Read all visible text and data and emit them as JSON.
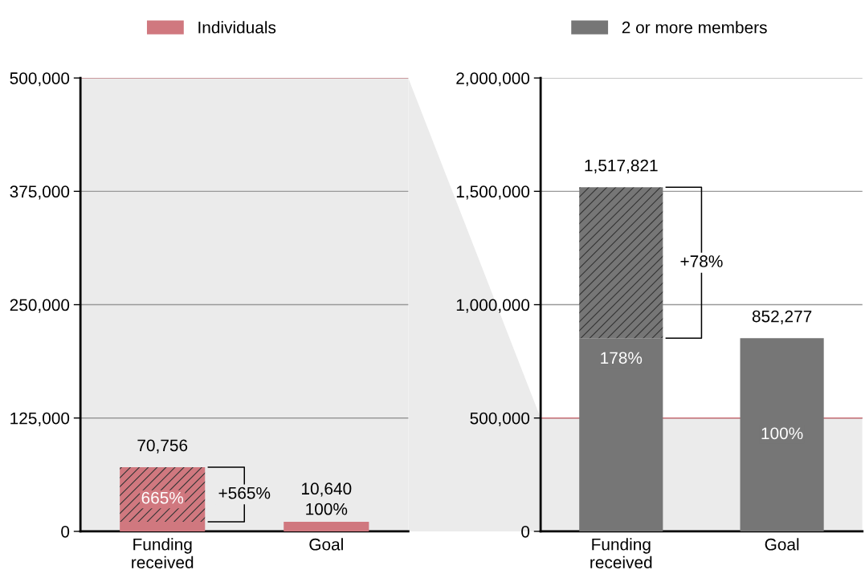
{
  "chart_data": [
    {
      "type": "bar",
      "stacked": true,
      "categories": [
        "Funding\nreceived",
        "Goal"
      ],
      "series": [
        {
          "name": "Individuals",
          "color": "#d0787f",
          "values": [
            10640,
            10640
          ]
        },
        {
          "color": "#d0787f",
          "values": [
            60116,
            null
          ]
        }
      ],
      "totals": [
        "70,756",
        "10,640"
      ],
      "ylim": [
        0,
        500000
      ],
      "yticks": [
        0,
        {
          "value": 125000,
          "label": "125,000"
        },
        {
          "value": 250000,
          "label": "250,000"
        },
        {
          "value": 375000,
          "label": "375,000"
        },
        {
          "value": 500000,
          "label": "500,000"
        }
      ],
      "grid": "y",
      "legend": "top",
      "bands": [
        {
          "axis": "y",
          "from": 0,
          "to": 500000,
          "color": "#ebebeb"
        }
      ],
      "ref_lines": [
        {
          "axis": "y",
          "value": 500000,
          "color": "#d0787f"
        }
      ],
      "annotations": [
        "665%",
        "100%",
        "+565%"
      ]
    },
    {
      "type": "bar",
      "stacked": true,
      "categories": [
        "Funding\nreceived",
        "Goal"
      ],
      "series": [
        {
          "name": "2 or more members",
          "color": "#767676",
          "values": [
            852277,
            852277
          ]
        },
        {
          "color": "#767676",
          "values": [
            665544,
            null
          ]
        }
      ],
      "totals": [
        "1,517,821",
        "852,277"
      ],
      "ylim": [
        0,
        2000000
      ],
      "yticks": [
        0,
        {
          "value": 500000,
          "label": "500,000"
        },
        {
          "value": 1000000,
          "label": "1,000,000"
        },
        {
          "value": 1500000,
          "label": "1,500,000"
        },
        {
          "value": 2000000,
          "label": "2,000,000"
        }
      ],
      "grid": "y",
      "legend": "top",
      "bands": [
        {
          "axis": "y",
          "from": 0,
          "to": 500000,
          "color": "#ebebeb"
        }
      ],
      "ref_lines": [
        {
          "axis": "y",
          "value": 500000,
          "color": "#d0787f"
        }
      ],
      "annotations": [
        "178%",
        "100%",
        "+78%"
      ]
    }
  ]
}
